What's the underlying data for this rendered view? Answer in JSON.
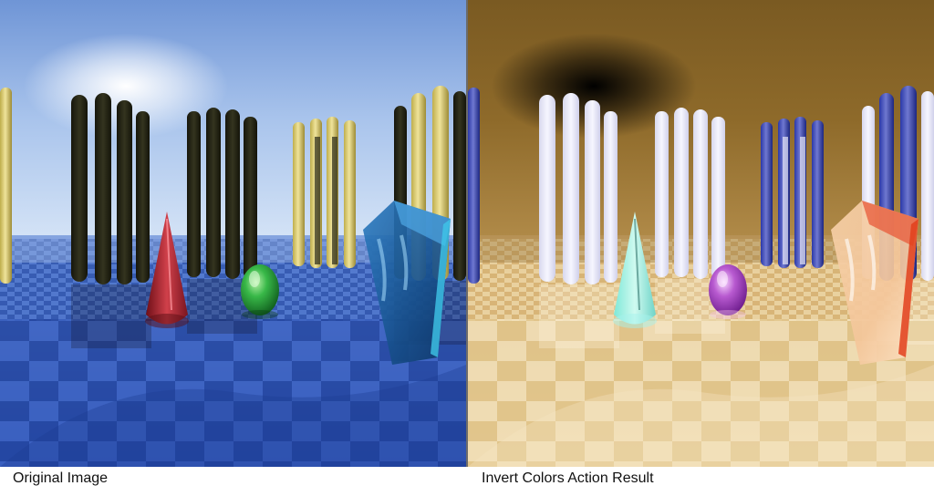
{
  "captions": {
    "original": "Original Image",
    "inverted": "Invert Colors Action Result"
  },
  "colors": {
    "sky_top": "#6f95d6",
    "sky_horizon": "#c9dcf4",
    "floor_dark": "#1f3f9a",
    "floor_light": "#5a83d4",
    "pillar_dark": "#262616",
    "pillar_yellow": "#e2d47a",
    "cone": "#a82430",
    "egg": "#2a9c3a",
    "glass_block": "#1f5fa0",
    "divider": "#6b6b6b"
  }
}
